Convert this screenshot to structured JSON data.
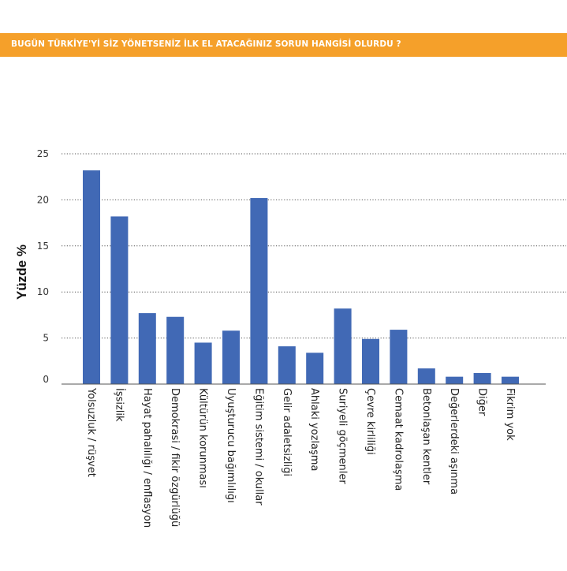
{
  "header": {
    "title": "BUGÜN TÜRKİYE'Yİ SİZ YÖNETSENİZ İLK EL ATACAĞINIZ SORUN HANGİSİ OLURDU ?"
  },
  "colors": {
    "header_bg": "#f5a02a",
    "bar": "#4169b5"
  },
  "chart_data": {
    "type": "bar",
    "title": "BUGÜN TÜRKİYE'Yİ SİZ YÖNETSENİZ İLK EL ATACAĞINIZ SORUN HANGİSİ OLURDU ?",
    "xlabel": "",
    "ylabel": "Yüzde %",
    "ylim": [
      0,
      25
    ],
    "yticks": [
      0,
      5,
      10,
      15,
      20,
      25
    ],
    "grid": "horizontal-dotted",
    "categories": [
      "Yolsuzluk / rüşvet",
      "İşsizlik",
      "Hayat pahalılığı / enflasyon",
      "Demokrasi / fikir özgürlüğü",
      "Kültürün korunması",
      "Uyuşturucu bağımlılığı",
      "Eğitim sistemi / okullar",
      "Gelir adaletsizliği",
      "Ahlaki yozlaşma",
      "Suriyeli göçmenler",
      "Çevre kirliliği",
      "Cemaat kadrolaşma",
      "Betonlaşan kentler",
      "Değerlerdeki aşınma",
      "Diğer",
      "Fikrim yok"
    ],
    "values": [
      23.2,
      18.2,
      7.7,
      7.3,
      4.5,
      5.8,
      20.2,
      4.1,
      3.4,
      8.2,
      4.9,
      5.9,
      1.7,
      0.8,
      1.2,
      0.8
    ]
  }
}
